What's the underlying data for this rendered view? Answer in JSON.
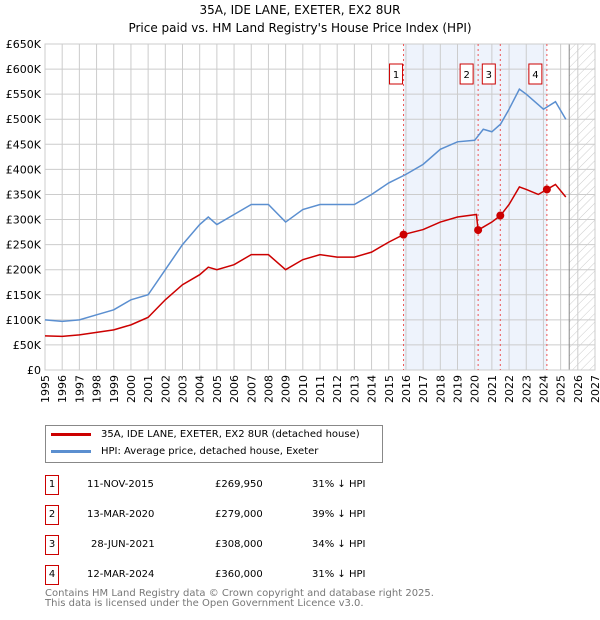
{
  "chart_data": {
    "type": "line",
    "title": "35A, IDE LANE, EXETER, EX2 8UR",
    "subtitle": "Price paid vs. HM Land Registry's House Price Index (HPI)",
    "xlim": [
      1995,
      2027
    ],
    "ylim": [
      0,
      650000
    ],
    "x_ticks": [
      "1995",
      "1996",
      "1997",
      "1998",
      "1999",
      "2000",
      "2001",
      "2002",
      "2003",
      "2004",
      "2005",
      "2006",
      "2007",
      "2008",
      "2009",
      "2010",
      "2011",
      "2012",
      "2013",
      "2014",
      "2015",
      "2016",
      "2017",
      "2018",
      "2019",
      "2020",
      "2021",
      "2022",
      "2023",
      "2024",
      "2025",
      "2026",
      "2027"
    ],
    "y_ticks": [
      {
        "v": 0,
        "label": "£0"
      },
      {
        "v": 50000,
        "label": "£50K"
      },
      {
        "v": 100000,
        "label": "£100K"
      },
      {
        "v": 150000,
        "label": "£150K"
      },
      {
        "v": 200000,
        "label": "£200K"
      },
      {
        "v": 250000,
        "label": "£250K"
      },
      {
        "v": 300000,
        "label": "£300K"
      },
      {
        "v": 350000,
        "label": "£350K"
      },
      {
        "v": 400000,
        "label": "£400K"
      },
      {
        "v": 450000,
        "label": "£450K"
      },
      {
        "v": 500000,
        "label": "£500K"
      },
      {
        "v": 550000,
        "label": "£550K"
      },
      {
        "v": 600000,
        "label": "£600K"
      },
      {
        "v": 650000,
        "label": "£650K"
      }
    ],
    "grid": true,
    "shaded_range": [
      2015.86,
      2024.2
    ],
    "forecast_hatch_from": 2025.5,
    "series": [
      {
        "name": "35A, IDE LANE, EXETER, EX2 8UR (detached house)",
        "color": "#cc0000",
        "x": [
          1995,
          1996,
          1997,
          1998,
          1999,
          2000,
          2001,
          2002,
          2003,
          2004,
          2004.5,
          2005,
          2006,
          2007,
          2008,
          2009,
          2010,
          2011,
          2012,
          2013,
          2014,
          2015,
          2015.86,
          2017,
          2018,
          2019,
          2020.1,
          2020.2,
          2020.5,
          2021,
          2021.5,
          2022,
          2022.6,
          2023,
          2023.7,
          2024.2,
          2024.7,
          2025.3
        ],
        "y": [
          68000,
          67000,
          70000,
          75000,
          80000,
          90000,
          105000,
          140000,
          170000,
          190000,
          205000,
          200000,
          210000,
          230000,
          230000,
          200000,
          220000,
          230000,
          225000,
          225000,
          235000,
          255000,
          270000,
          280000,
          295000,
          305000,
          310000,
          279000,
          285000,
          295000,
          308000,
          330000,
          365000,
          360000,
          350000,
          360000,
          370000,
          345000
        ]
      },
      {
        "name": "HPI: Average price, detached house, Exeter",
        "color": "#5b8fd0",
        "x": [
          1995,
          1996,
          1997,
          1998,
          1999,
          2000,
          2001,
          2002,
          2003,
          2004,
          2004.5,
          2005,
          2006,
          2007,
          2008,
          2009,
          2010,
          2011,
          2012,
          2013,
          2014,
          2015,
          2016,
          2017,
          2018,
          2019,
          2020,
          2020.5,
          2021,
          2021.5,
          2022,
          2022.6,
          2023,
          2023.5,
          2024,
          2024.7,
          2025.3
        ],
        "y": [
          100000,
          97000,
          100000,
          110000,
          120000,
          140000,
          150000,
          200000,
          250000,
          290000,
          305000,
          290000,
          310000,
          330000,
          330000,
          295000,
          320000,
          330000,
          330000,
          330000,
          350000,
          373000,
          390000,
          410000,
          440000,
          455000,
          458000,
          480000,
          475000,
          490000,
          520000,
          560000,
          550000,
          535000,
          520000,
          535000,
          500000
        ]
      }
    ],
    "sales": [
      {
        "n": "1",
        "x": 2015.86,
        "y": 269950,
        "date": "11-NOV-2015",
        "price": "£269,950",
        "hpi": "31% ↓ HPI"
      },
      {
        "n": "2",
        "x": 2020.2,
        "y": 279000,
        "date": "13-MAR-2020",
        "price": "£279,000",
        "hpi": "39% ↓ HPI"
      },
      {
        "n": "3",
        "x": 2021.49,
        "y": 308000,
        "date": "28-JUN-2021",
        "price": "£308,000",
        "hpi": "34% ↓ HPI"
      },
      {
        "n": "4",
        "x": 2024.2,
        "y": 360000,
        "date": "12-MAR-2024",
        "price": "£360,000",
        "hpi": "31% ↓ HPI"
      }
    ]
  },
  "footer": {
    "line1": "Contains HM Land Registry data © Crown copyright and database right 2025.",
    "line2": "This data is licensed under the Open Government Licence v3.0."
  }
}
